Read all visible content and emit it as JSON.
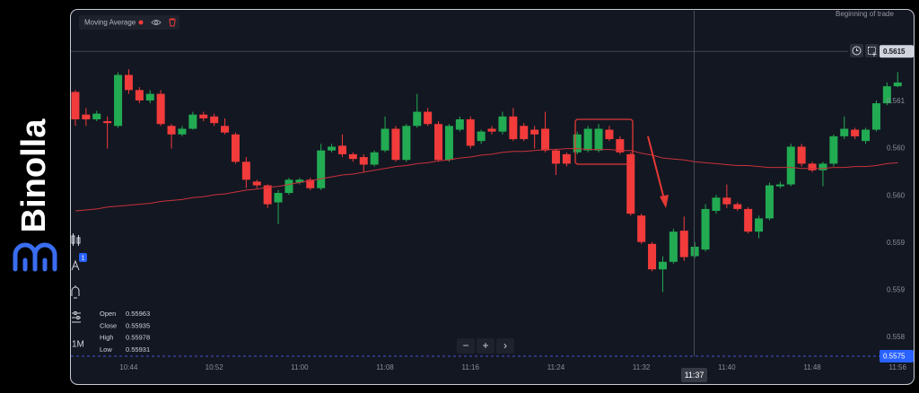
{
  "brand": "Binolla",
  "ui": {
    "trade_label": "Beginning of trade",
    "interval": "1M",
    "drawing_badge": "1",
    "ohlc": [
      {
        "label": "Open",
        "value": 0.55963
      },
      {
        "label": "Close",
        "value": 0.55935
      },
      {
        "label": "High",
        "value": 0.55978
      },
      {
        "label": "Low",
        "value": 0.55931
      }
    ],
    "crosshair_time": "11:37",
    "bottom_price": "0.5575",
    "zoom_buttons": [
      "−",
      "+",
      "›"
    ]
  },
  "chart_data": {
    "type": "candlestick",
    "categories": [
      null,
      null,
      null,
      null,
      null,
      "10:44",
      null,
      null,
      null,
      null,
      null,
      null,
      null,
      "10:52",
      null,
      null,
      null,
      null,
      null,
      null,
      null,
      "11:00",
      null,
      null,
      null,
      null,
      null,
      null,
      null,
      "11:08",
      null,
      null,
      null,
      null,
      null,
      null,
      null,
      "11:16",
      null,
      null,
      null,
      null,
      null,
      null,
      null,
      "11:24",
      null,
      null,
      null,
      null,
      null,
      null,
      null,
      "11:32",
      null,
      null,
      null,
      null,
      null,
      null,
      null,
      "11:40",
      null,
      null,
      null,
      null,
      null,
      null,
      null,
      "11:48",
      null,
      null,
      null,
      null,
      null,
      null,
      null,
      "11:56"
    ],
    "open": [
      0.5611,
      0.56086,
      0.56081,
      0.56079,
      0.56074,
      0.56128,
      0.56112,
      0.56101,
      0.56108,
      0.56074,
      0.56065,
      0.56071,
      0.56086,
      0.56084,
      0.56074,
      0.56065,
      0.56036,
      0.56015,
      0.56011,
      0.55993,
      0.56003,
      0.56014,
      0.56017,
      0.56008,
      0.56048,
      0.56053,
      0.56044,
      0.56041,
      0.56033,
      0.56048,
      0.56071,
      0.56038,
      0.56074,
      0.56089,
      0.56076,
      0.56038,
      0.5607,
      0.56081,
      0.56058,
      0.56071,
      0.56068,
      0.56084,
      0.56074,
      0.5607,
      0.56071,
      0.56048,
      0.56044,
      0.56046,
      0.56048,
      0.56048,
      0.5607,
      0.5606,
      0.56044,
      0.55979,
      0.55949,
      0.55922,
      0.5593,
      0.55963,
      0.55936,
      0.55943,
      0.55984,
      0.55998,
      0.55991,
      0.55986,
      0.55962,
      0.55976,
      0.5601,
      0.56012,
      0.56052,
      0.56034,
      0.56027,
      0.56034,
      0.56063,
      0.5607,
      0.56058,
      0.5607,
      0.56098,
      0.56116
    ],
    "high": [
      0.56112,
      0.56093,
      0.5609,
      0.56084,
      0.56131,
      0.56134,
      0.56115,
      0.56112,
      0.56112,
      0.56076,
      0.56074,
      0.56089,
      0.56089,
      0.56087,
      0.56082,
      0.56067,
      0.56041,
      0.56017,
      0.56012,
      0.56006,
      0.56019,
      0.56019,
      0.56019,
      0.56055,
      0.56055,
      0.56065,
      0.56046,
      0.56044,
      0.56048,
      0.56084,
      0.56074,
      0.56076,
      0.56108,
      0.56093,
      0.56079,
      0.56076,
      0.56084,
      0.56084,
      0.5607,
      0.56074,
      0.56089,
      0.56093,
      0.56077,
      0.56074,
      0.56089,
      0.5605,
      0.56046,
      0.56068,
      0.56074,
      0.56076,
      0.56074,
      0.56063,
      0.56046,
      0.55981,
      0.55951,
      0.55936,
      0.55965,
      0.55978,
      0.55951,
      0.55991,
      0.56001,
      0.56012,
      0.55993,
      0.55988,
      0.55979,
      0.56014,
      0.56015,
      0.56055,
      0.56055,
      0.56036,
      0.56036,
      0.56065,
      0.56084,
      0.56072,
      0.56072,
      0.56101,
      0.5612,
      0.56131
    ],
    "low": [
      0.56074,
      0.56074,
      0.56079,
      0.5605,
      0.56072,
      0.56108,
      0.56098,
      0.56098,
      0.56074,
      0.5605,
      0.56063,
      0.5607,
      0.56079,
      0.56074,
      0.56065,
      0.56034,
      0.56008,
      0.56008,
      0.55987,
      0.5597,
      0.56001,
      0.56012,
      0.56006,
      0.56006,
      0.56046,
      0.56041,
      0.56036,
      0.56025,
      0.56031,
      0.56046,
      0.56036,
      0.56036,
      0.56072,
      0.56074,
      0.56036,
      0.56036,
      0.56068,
      0.5605,
      0.56055,
      0.56065,
      0.56065,
      0.56058,
      0.56058,
      0.5605,
      0.56046,
      0.56022,
      0.56031,
      0.56044,
      0.56046,
      0.56046,
      0.56058,
      0.56044,
      0.55979,
      0.55949,
      0.5592,
      0.55898,
      0.55928,
      0.55931,
      0.55934,
      0.55941,
      0.55981,
      0.55987,
      0.55984,
      0.5596,
      0.55955,
      0.55974,
      0.56008,
      0.5601,
      0.56031,
      0.56025,
      0.5601,
      0.56031,
      0.5606,
      0.5606,
      0.56055,
      0.56068,
      0.56096,
      0.56115
    ],
    "close": [
      0.56081,
      0.56081,
      0.56087,
      0.56077,
      0.56128,
      0.56112,
      0.56101,
      0.56108,
      0.56076,
      0.56065,
      0.56071,
      0.56086,
      0.56082,
      0.56077,
      0.56067,
      0.56036,
      0.56017,
      0.56011,
      0.55991,
      0.56003,
      0.56017,
      0.56017,
      0.56008,
      0.56048,
      0.56052,
      0.56044,
      0.56039,
      0.56033,
      0.56046,
      0.56071,
      0.56038,
      0.56074,
      0.56089,
      0.56076,
      0.56038,
      0.56074,
      0.56081,
      0.56053,
      0.56068,
      0.56068,
      0.56084,
      0.5606,
      0.5606,
      0.56065,
      0.56048,
      0.56034,
      0.56034,
      0.56065,
      0.56071,
      0.56071,
      0.5606,
      0.56046,
      0.55981,
      0.55951,
      0.55922,
      0.5593,
      0.55962,
      0.55935,
      0.55946,
      0.55986,
      0.55998,
      0.55991,
      0.55986,
      0.55962,
      0.55976,
      0.56011,
      0.56012,
      0.56052,
      0.56034,
      0.56027,
      0.56034,
      0.56063,
      0.56071,
      0.56063,
      0.5607,
      0.56098,
      0.56116,
      0.5612
    ],
    "up_color": "#22ab52",
    "down_color": "#f23b3b",
    "indicator": {
      "name": "Moving Average",
      "color": "#c8323a",
      "values": [
        0.55984,
        0.55985,
        0.55986,
        0.55988,
        0.55989,
        0.5599,
        0.55991,
        0.55992,
        0.55994,
        0.55995,
        0.55996,
        0.55998,
        0.55999,
        0.56001,
        0.56002,
        0.56004,
        0.56006,
        0.56007,
        0.56009,
        0.5601,
        0.56012,
        0.56014,
        0.56016,
        0.56018,
        0.5602,
        0.56022,
        0.56023,
        0.56025,
        0.56027,
        0.56029,
        0.56031,
        0.56032,
        0.56034,
        0.56035,
        0.56037,
        0.56038,
        0.5604,
        0.56041,
        0.56043,
        0.56044,
        0.56046,
        0.56047,
        0.56047,
        0.56048,
        0.56049,
        0.56049,
        0.5605,
        0.5605,
        0.56049,
        0.56049,
        0.56049,
        0.56048,
        0.56048,
        0.56045,
        0.56043,
        0.5604,
        0.56039,
        0.56038,
        0.56036,
        0.56035,
        0.56034,
        0.56033,
        0.56032,
        0.56032,
        0.56031,
        0.5603,
        0.5603,
        0.5603,
        0.56029,
        0.56029,
        0.56029,
        0.5603,
        0.5603,
        0.56031,
        0.56031,
        0.56032,
        0.56034,
        0.56035
      ]
    },
    "last_price": {
      "value": 0.56153,
      "label": "0.5615"
    },
    "ylim": [
      0.5583,
      0.56196
    ],
    "yticks": [
      {
        "value": 0.561,
        "label": "0.561"
      },
      {
        "value": 0.5605,
        "label": "0.560"
      },
      {
        "value": 0.56,
        "label": "0.560"
      },
      {
        "value": 0.5595,
        "label": "0.559"
      },
      {
        "value": 0.559,
        "label": "0.559"
      },
      {
        "value": 0.5585,
        "label": "0.558"
      }
    ],
    "grid": false
  }
}
